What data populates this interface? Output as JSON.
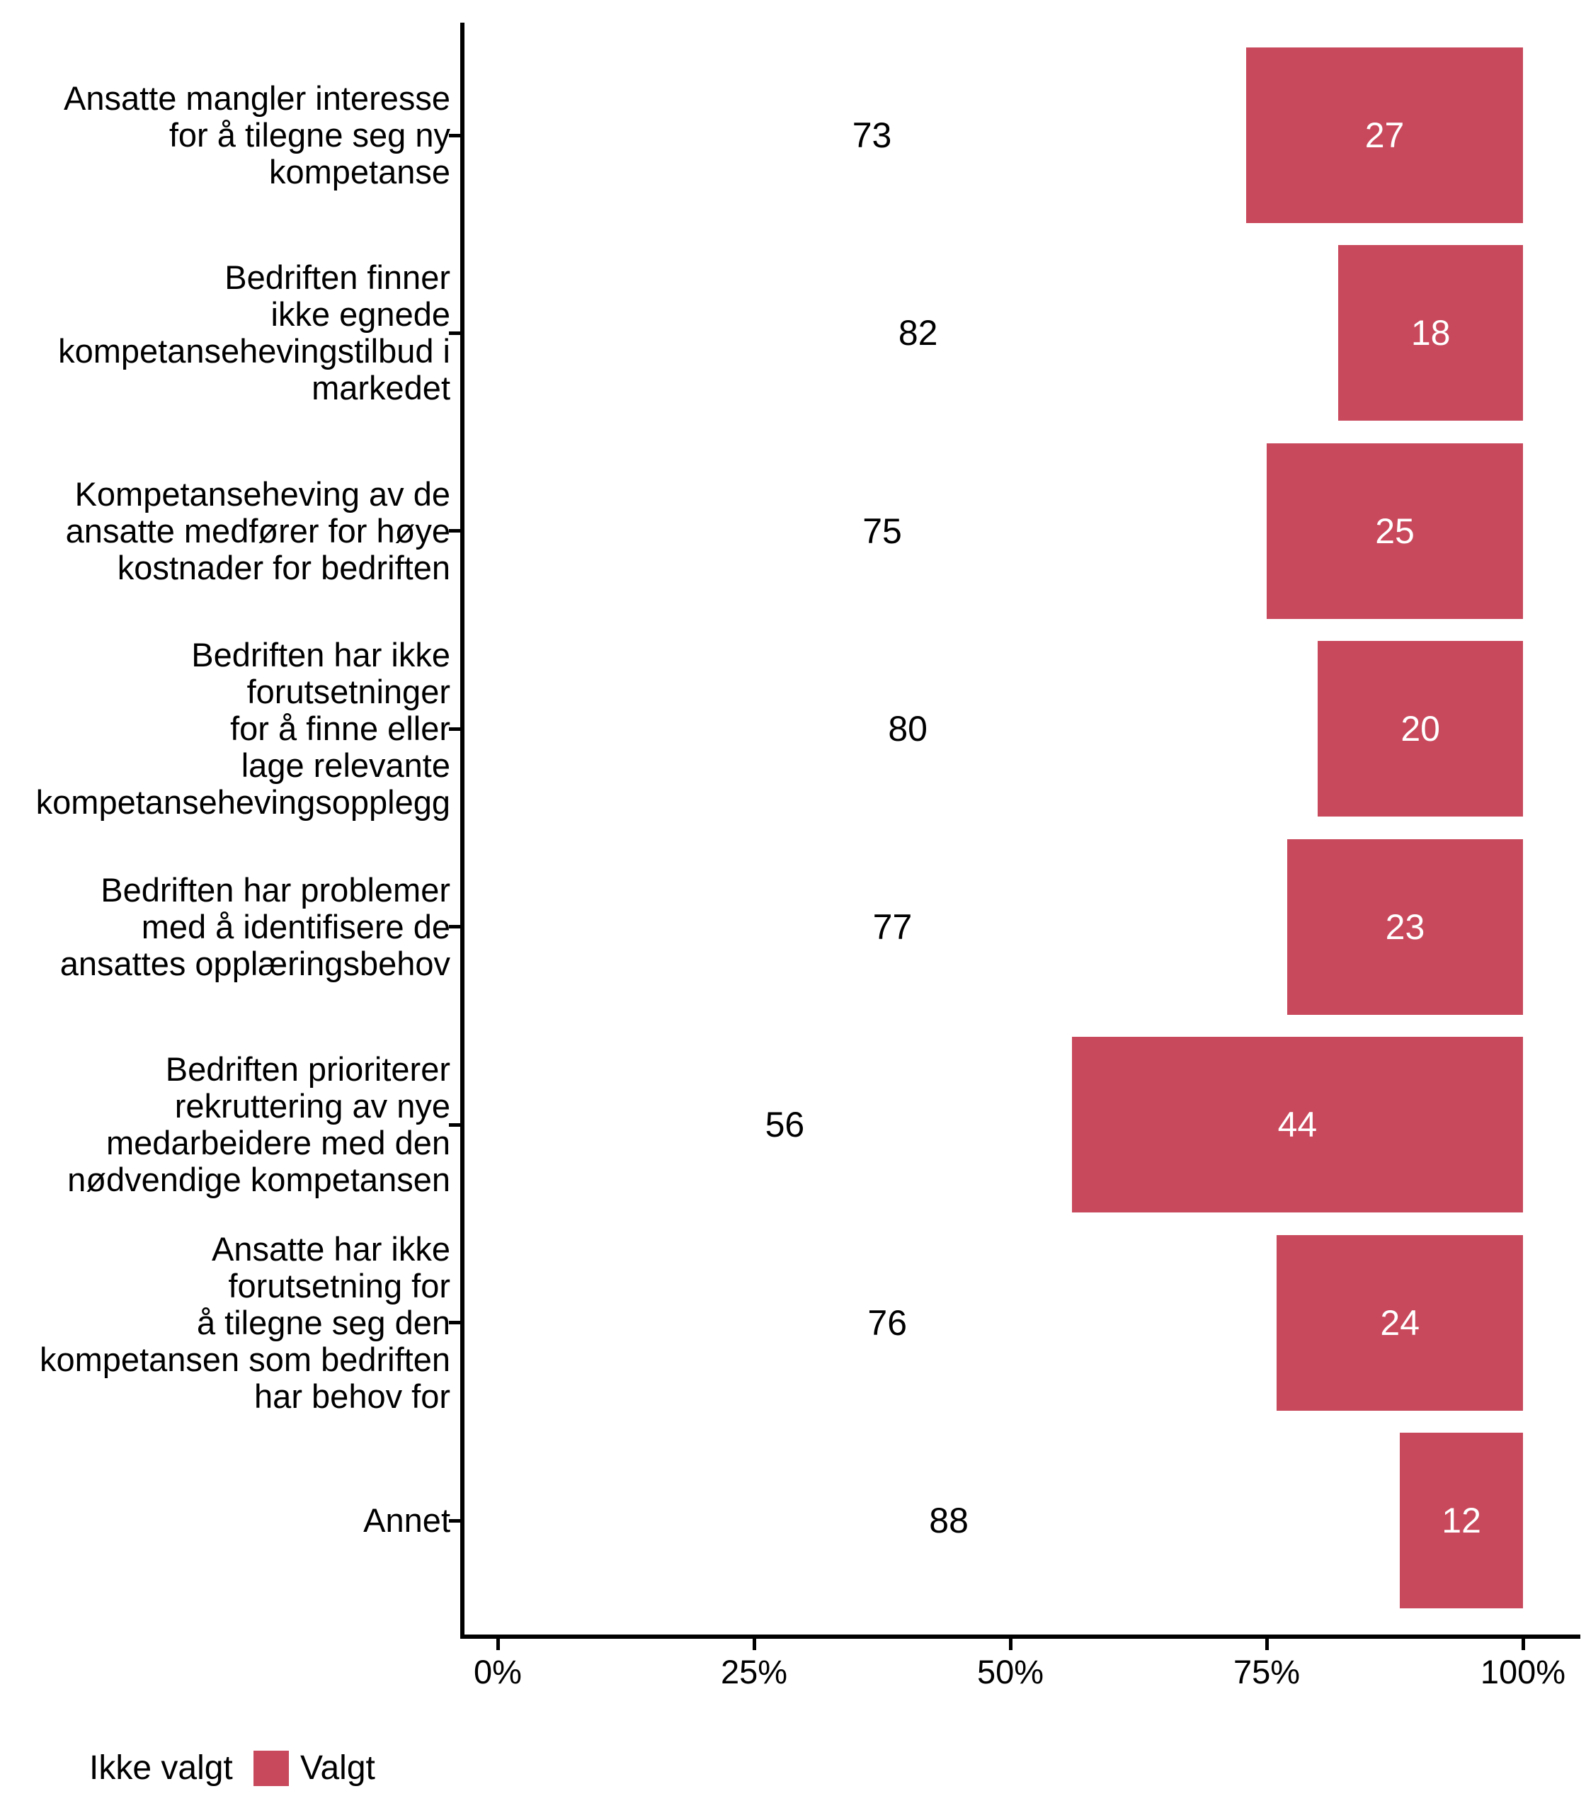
{
  "chart_data": {
    "type": "bar",
    "orientation": "horizontal",
    "stacked": true,
    "title": "",
    "unit": "%",
    "xlim": [
      0,
      100
    ],
    "grid": false,
    "background": "#FFFFFF",
    "axis_color": "#000000",
    "categories": [
      [
        "Ansatte mangler interesse",
        "for å tilegne seg ny",
        "kompetanse"
      ],
      [
        "Bedriften finner",
        "ikke egnede",
        "kompetansehevingstilbud i",
        "markedet"
      ],
      [
        "Kompetanseheving av de",
        "ansatte medfører for høye",
        "kostnader for bedriften"
      ],
      [
        "Bedriften har ikke",
        "forutsetninger",
        "for å finne eller",
        "lage relevante",
        "kompetansehevingsopplegg"
      ],
      [
        "Bedriften har problemer",
        "med å identifisere de",
        "ansattes opplæringsbehov"
      ],
      [
        "Bedriften prioriterer",
        "rekruttering av nye",
        "medarbeidere med den",
        "nødvendige kompetansen"
      ],
      [
        "Ansatte har ikke",
        "forutsetning for",
        "å tilegne seg den",
        "kompetansen som bedriften",
        "har behov for"
      ],
      [
        "Annet"
      ]
    ],
    "series": [
      {
        "name": "Ikke valgt",
        "color": "#FFFFFF",
        "text_color": "#000000",
        "values": [
          73,
          82,
          75,
          80,
          77,
          56,
          76,
          88
        ]
      },
      {
        "name": "Valgt",
        "color": "#C8495C",
        "text_color": "#FFFFFF",
        "values": [
          27,
          18,
          25,
          20,
          23,
          44,
          24,
          12
        ]
      }
    ],
    "x_ticks": [
      {
        "label": "0%",
        "value": 0
      },
      {
        "label": "25%",
        "value": 25
      },
      {
        "label": "50%",
        "value": 50
      },
      {
        "label": "75%",
        "value": 75
      },
      {
        "label": "100%",
        "value": 100
      }
    ],
    "legend": {
      "position": "bottom-left",
      "items": [
        {
          "label": "Ikke valgt",
          "color": "#FFFFFF"
        },
        {
          "label": "Valgt",
          "color": "#C8495C"
        }
      ]
    }
  }
}
